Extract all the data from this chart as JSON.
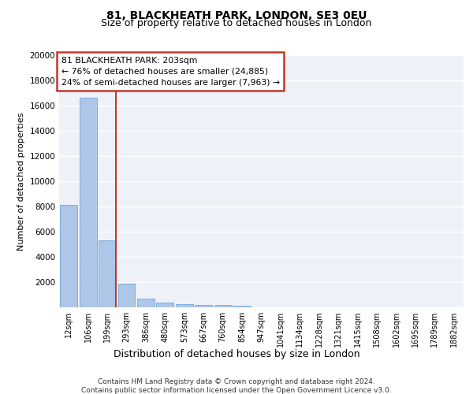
{
  "title1": "81, BLACKHEATH PARK, LONDON, SE3 0EU",
  "title2": "Size of property relative to detached houses in London",
  "xlabel": "Distribution of detached houses by size in London",
  "ylabel": "Number of detached properties",
  "footnote1": "Contains HM Land Registry data © Crown copyright and database right 2024.",
  "footnote2": "Contains public sector information licensed under the Open Government Licence v3.0.",
  "annotation_line1": "81 BLACKHEATH PARK: 203sqm",
  "annotation_line2": "← 76% of detached houses are smaller (24,885)",
  "annotation_line3": "24% of semi-detached houses are larger (7,963) →",
  "bar_color": "#aec6e8",
  "bar_edge_color": "#5b9bd5",
  "vline_color": "#c0392b",
  "annotation_box_edge": "#c0392b",
  "categories": [
    "12sqm",
    "106sqm",
    "199sqm",
    "293sqm",
    "386sqm",
    "480sqm",
    "573sqm",
    "667sqm",
    "760sqm",
    "854sqm",
    "947sqm",
    "1041sqm",
    "1134sqm",
    "1228sqm",
    "1321sqm",
    "1415sqm",
    "1508sqm",
    "1602sqm",
    "1695sqm",
    "1789sqm",
    "1882sqm"
  ],
  "values": [
    8100,
    16600,
    5300,
    1850,
    700,
    350,
    270,
    200,
    170,
    130,
    0,
    0,
    0,
    0,
    0,
    0,
    0,
    0,
    0,
    0,
    0
  ],
  "ylim": [
    0,
    20000
  ],
  "yticks": [
    0,
    2000,
    4000,
    6000,
    8000,
    10000,
    12000,
    14000,
    16000,
    18000,
    20000
  ],
  "property_sqm_index": 2,
  "bg_color": "#eef2f8",
  "grid_color": "#ffffff",
  "title1_fontsize": 10,
  "title2_fontsize": 9,
  "ylabel_fontsize": 8,
  "xlabel_fontsize": 9,
  "tick_fontsize": 7,
  "footnote_fontsize": 6.5
}
